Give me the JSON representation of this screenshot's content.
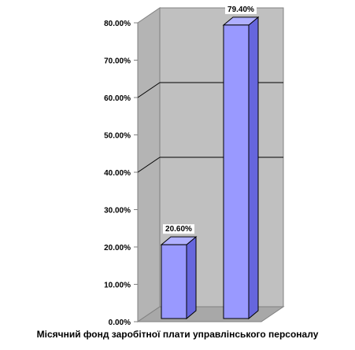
{
  "chart_data": {
    "type": "bar",
    "categories": [
      "",
      ""
    ],
    "values": [
      20.6,
      79.4
    ],
    "data_labels": [
      "20.60%",
      "79.40%"
    ],
    "title": "",
    "xlabel": "Місячний фонд заробітної плати управлінського персоналу",
    "ylabel": "",
    "ylim": [
      0,
      80
    ],
    "yticks": [
      0,
      10,
      20,
      30,
      40,
      50,
      60,
      70,
      80
    ],
    "ytick_labels": [
      "0.00%",
      "10.00%",
      "20.00%",
      "30.00%",
      "40.00%",
      "50.00%",
      "60.00%",
      "70.00%",
      "80.00%"
    ],
    "grid": true,
    "style": "3d",
    "colors": {
      "bar_front": "#9999ff",
      "bar_side": "#6666dd",
      "bar_top": "#b0b0ff",
      "wall": "#c0c0c0",
      "floor": "#a8a8a8",
      "gridline": "#000000"
    }
  }
}
